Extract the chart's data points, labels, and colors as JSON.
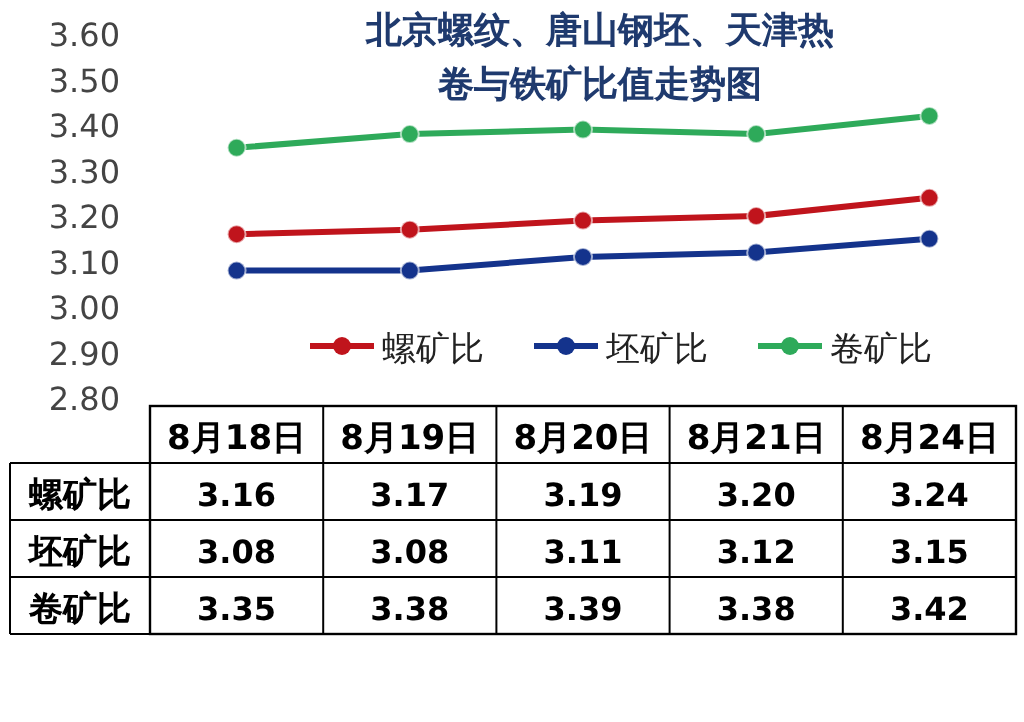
{
  "chart_data": {
    "type": "line",
    "title": "北京螺纹、唐山钢坯、天津热卷与铁矿比值走势图",
    "categories": [
      "8月18日",
      "8月19日",
      "8月20日",
      "8月21日",
      "8月24日"
    ],
    "series": [
      {
        "name": "螺矿比",
        "color": "#c0141c",
        "values": [
          3.16,
          3.17,
          3.19,
          3.2,
          3.24
        ],
        "value_labels": [
          "3.16",
          "3.17",
          "3.19",
          "3.20",
          "3.24"
        ]
      },
      {
        "name": "坯矿比",
        "color": "#14338c",
        "values": [
          3.08,
          3.08,
          3.11,
          3.12,
          3.15
        ],
        "value_labels": [
          "3.08",
          "3.08",
          "3.11",
          "3.12",
          "3.15"
        ]
      },
      {
        "name": "卷矿比",
        "color": "#2eaa5a",
        "values": [
          3.35,
          3.38,
          3.39,
          3.38,
          3.42
        ],
        "value_labels": [
          "3.35",
          "3.38",
          "3.39",
          "3.38",
          "3.42"
        ]
      }
    ],
    "ylim": [
      2.8,
      3.6
    ],
    "yticks": [
      {
        "value": 2.8,
        "label": "2.80"
      },
      {
        "value": 2.9,
        "label": "2.90"
      },
      {
        "value": 3.0,
        "label": "3.00"
      },
      {
        "value": 3.1,
        "label": "3.10"
      },
      {
        "value": 3.2,
        "label": "3.20"
      },
      {
        "value": 3.3,
        "label": "3.30"
      },
      {
        "value": 3.4,
        "label": "3.40"
      },
      {
        "value": 3.5,
        "label": "3.50"
      },
      {
        "value": 3.6,
        "label": "3.60"
      }
    ],
    "grid": false,
    "legend": "bottom",
    "marker": "circle",
    "line_style": "solid"
  }
}
